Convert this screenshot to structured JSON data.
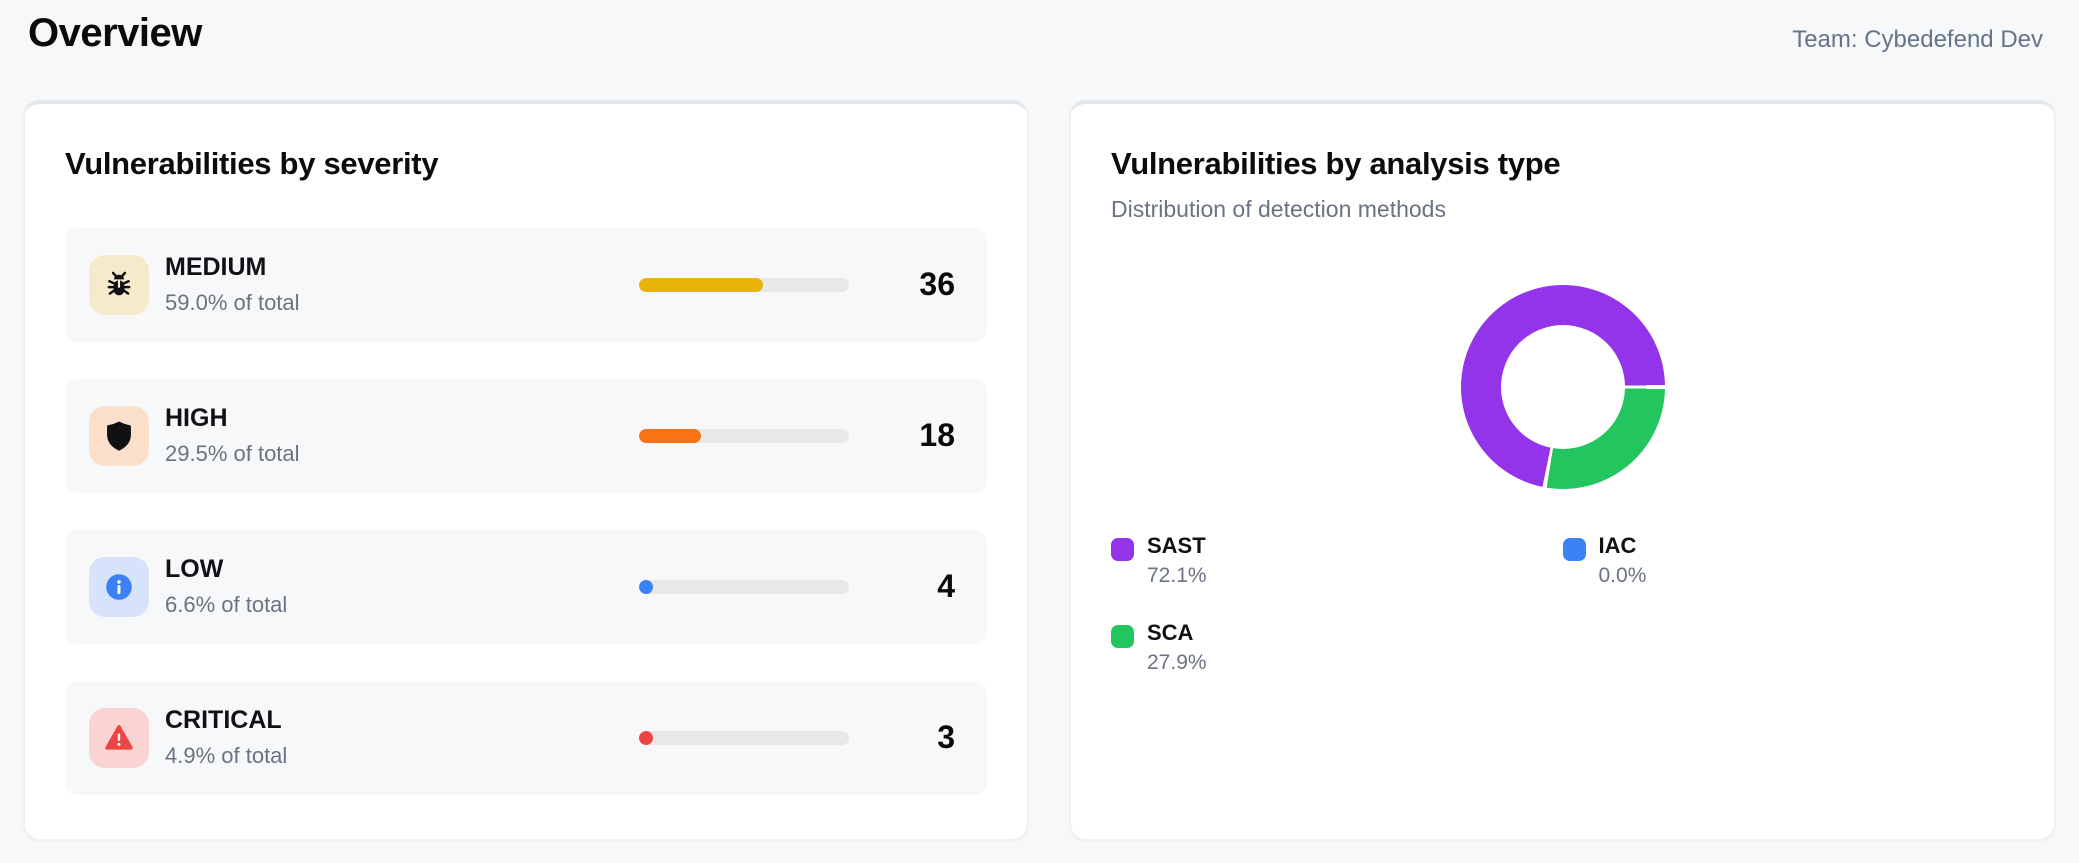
{
  "page": {
    "title": "Overview",
    "team_label": "Team: Cybedefend Dev",
    "background_color": "#f7f8fa"
  },
  "severity_card": {
    "title": "Vulnerabilities by severity",
    "rows": [
      {
        "label": "MEDIUM",
        "pct_text": "59.0% of total",
        "pct": 59.0,
        "count": "36",
        "bar_color": "#eab308",
        "icon": "bug-icon",
        "icon_bg": "#f5ebcb"
      },
      {
        "label": "HIGH",
        "pct_text": "29.5% of total",
        "pct": 29.5,
        "count": "18",
        "bar_color": "#f97316",
        "icon": "shield-icon",
        "icon_bg": "#fbdfca"
      },
      {
        "label": "LOW",
        "pct_text": "6.6% of total",
        "pct": 6.6,
        "count": "4",
        "bar_color": "#3b82f6",
        "icon": "info-icon",
        "icon_bg": "#d7e3fb"
      },
      {
        "label": "CRITICAL",
        "pct_text": "4.9% of total",
        "pct": 4.9,
        "count": "3",
        "bar_color": "#ef4444",
        "icon": "alert-triangle-icon",
        "icon_bg": "#fad3d3"
      }
    ],
    "bar_track_color": "#e7e8ea"
  },
  "analysis_card": {
    "title": "Vulnerabilities by analysis type",
    "subtitle": "Distribution of detection methods",
    "chart_data": {
      "type": "pie",
      "title": "Vulnerabilities by analysis type",
      "legend_position": "bottom",
      "donut": true,
      "slices": [
        {
          "name": "SAST",
          "pct": 72.1,
          "color": "#9333ea"
        },
        {
          "name": "SCA",
          "pct": 27.9,
          "color": "#22c55e"
        },
        {
          "name": "IAC",
          "pct": 0.0,
          "color": "#3b82f6"
        }
      ]
    },
    "legend": [
      {
        "name": "SAST",
        "pct_text": "72.1%",
        "color": "#9333ea"
      },
      {
        "name": "IAC",
        "pct_text": "0.0%",
        "color": "#3b82f6"
      },
      {
        "name": "SCA",
        "pct_text": "27.9%",
        "color": "#22c55e"
      }
    ]
  }
}
